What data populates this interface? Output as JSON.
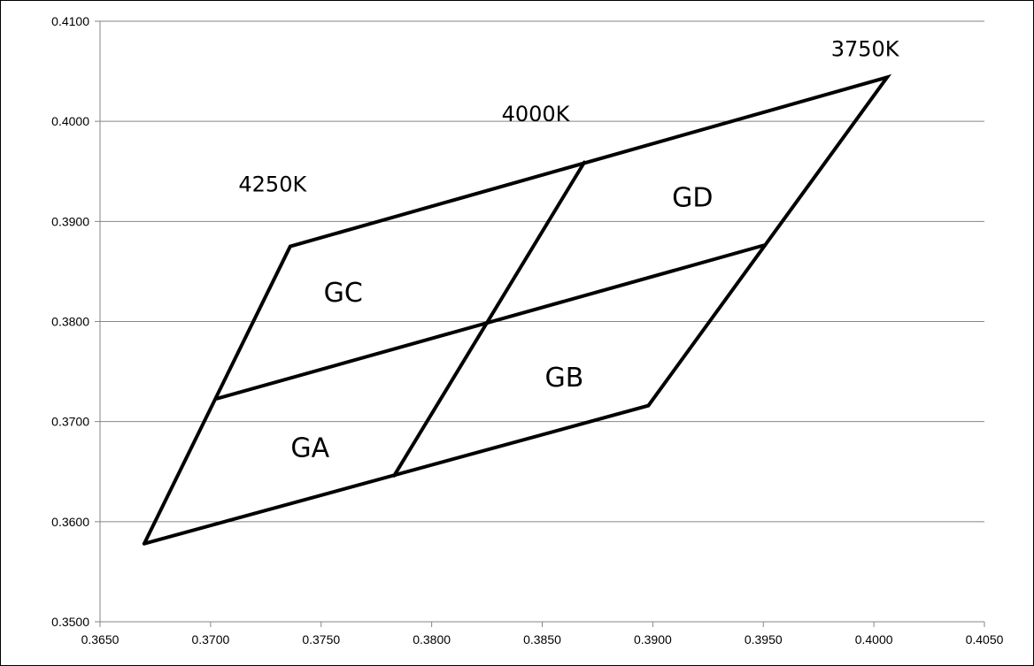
{
  "chart_data": {
    "type": "line",
    "title": "",
    "xlabel": "",
    "ylabel": "",
    "xlim": [
      0.365,
      0.405
    ],
    "ylim": [
      0.35,
      0.41
    ],
    "grid": "horizontal",
    "x_ticks": [
      "0.3650",
      "0.3700",
      "0.3750",
      "0.3800",
      "0.3850",
      "0.3900",
      "0.3950",
      "0.4000",
      "0.4050"
    ],
    "y_ticks": [
      "0.3500",
      "0.3600",
      "0.3700",
      "0.3800",
      "0.3900",
      "0.4000",
      "0.4100"
    ],
    "series": [
      {
        "id": "outline",
        "points": [
          [
            0.367,
            0.3578
          ],
          [
            0.3898,
            0.3716
          ],
          [
            0.4006,
            0.4044
          ],
          [
            0.3736,
            0.3875
          ],
          [
            0.367,
            0.3578
          ]
        ]
      },
      {
        "id": "divider-1",
        "points": [
          [
            0.3783,
            0.3646
          ],
          [
            0.3869,
            0.3959
          ]
        ]
      },
      {
        "id": "divider-2",
        "points": [
          [
            0.3703,
            0.3723
          ],
          [
            0.395,
            0.3876
          ]
        ]
      }
    ],
    "annotations": [
      {
        "text": "GA",
        "x": 0.3745,
        "y": 0.3665,
        "kind": "region"
      },
      {
        "text": "GB",
        "x": 0.386,
        "y": 0.3735,
        "kind": "region"
      },
      {
        "text": "GC",
        "x": 0.376,
        "y": 0.382,
        "kind": "region"
      },
      {
        "text": "GD",
        "x": 0.3918,
        "y": 0.3915,
        "kind": "region"
      },
      {
        "text": "4250K",
        "x": 0.3728,
        "y": 0.393,
        "kind": "temp"
      },
      {
        "text": "4000K",
        "x": 0.3847,
        "y": 0.4,
        "kind": "temp"
      },
      {
        "text": "3750K",
        "x": 0.3996,
        "y": 0.4065,
        "kind": "temp"
      }
    ]
  }
}
